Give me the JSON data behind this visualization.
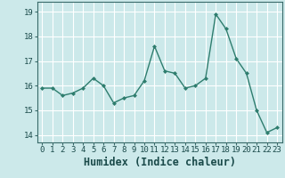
{
  "x": [
    0,
    1,
    2,
    3,
    4,
    5,
    6,
    7,
    8,
    9,
    10,
    11,
    12,
    13,
    14,
    15,
    16,
    17,
    18,
    19,
    20,
    21,
    22,
    23
  ],
  "y": [
    15.9,
    15.9,
    15.6,
    15.7,
    15.9,
    16.3,
    16.0,
    15.3,
    15.5,
    15.6,
    16.2,
    17.6,
    16.6,
    16.5,
    15.9,
    16.0,
    16.3,
    18.9,
    18.3,
    17.1,
    16.5,
    15.0,
    14.1,
    14.3
  ],
  "xlabel": "Humidex (Indice chaleur)",
  "ylim": [
    13.7,
    19.4
  ],
  "xlim": [
    -0.5,
    23.5
  ],
  "line_color": "#2e7d6e",
  "marker_color": "#2e7d6e",
  "bg_color": "#cce9ea",
  "grid_color": "#ffffff",
  "axis_color": "#3a6a6a",
  "tick_label_color": "#1a4a4a",
  "xlabel_color": "#1a4a4a",
  "yticks": [
    14,
    15,
    16,
    17,
    18,
    19
  ],
  "xticks": [
    0,
    1,
    2,
    3,
    4,
    5,
    6,
    7,
    8,
    9,
    10,
    11,
    12,
    13,
    14,
    15,
    16,
    17,
    18,
    19,
    20,
    21,
    22,
    23
  ],
  "fontsize_tick": 6.5,
  "fontsize_xlabel": 8.5
}
